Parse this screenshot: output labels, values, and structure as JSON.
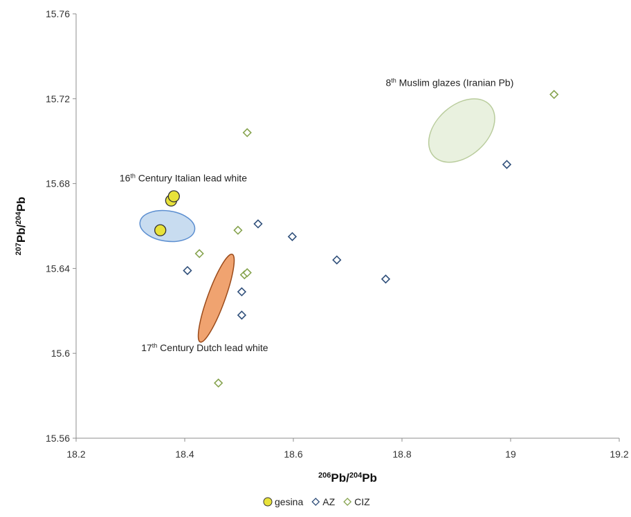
{
  "chart_data": {
    "type": "scatter",
    "title": "",
    "xlabel": {
      "sup": "206",
      "main": "Pb/",
      "sup2": "204",
      "main2": "Pb"
    },
    "ylabel": {
      "sup": "207",
      "main": "Pb/",
      "sup2": "204",
      "main2": "Pb"
    },
    "xlim": [
      18.2,
      19.2
    ],
    "ylim": [
      15.56,
      15.76
    ],
    "xticks": [
      18.2,
      18.4,
      18.6,
      18.8,
      19.0,
      19.2
    ],
    "xtick_labels": [
      "18.2",
      "18.4",
      "18.6",
      "18.8",
      "19",
      "19.2"
    ],
    "yticks": [
      15.56,
      15.6,
      15.64,
      15.68,
      15.72,
      15.76
    ],
    "ytick_labels": [
      "15.56",
      "15.6",
      "15.64",
      "15.68",
      "15.72",
      "15.76"
    ],
    "grid": false,
    "legend_position": "bottom-center",
    "series": [
      {
        "name": "gesina",
        "marker": "circle",
        "fill": "#e8e23a",
        "stroke": "#333333",
        "points": [
          [
            18.355,
            15.658
          ],
          [
            18.375,
            15.672
          ],
          [
            18.38,
            15.674
          ]
        ]
      },
      {
        "name": "AZ",
        "marker": "diamond",
        "fill": "#ffffff",
        "stroke": "#2f4f7a",
        "points": [
          [
            18.405,
            15.639
          ],
          [
            18.505,
            15.629
          ],
          [
            18.505,
            15.618
          ],
          [
            18.535,
            15.661
          ],
          [
            18.598,
            15.655
          ],
          [
            18.68,
            15.644
          ],
          [
            18.77,
            15.635
          ],
          [
            18.993,
            15.689
          ]
        ]
      },
      {
        "name": "CIZ",
        "marker": "diamond",
        "fill": "#ffffff",
        "stroke": "#86a34e",
        "points": [
          [
            18.427,
            15.647
          ],
          [
            18.462,
            15.586
          ],
          [
            18.498,
            15.658
          ],
          [
            18.51,
            15.637
          ],
          [
            18.515,
            15.638
          ],
          [
            18.515,
            15.704
          ],
          [
            19.08,
            15.722
          ]
        ]
      }
    ],
    "regions": [
      {
        "name": "italian",
        "cx": 18.368,
        "cy": 15.66,
        "rx": 0.028,
        "ry": 0.013,
        "angle": -82,
        "fill": "#c8dcf0",
        "stroke": "#5b8ed0"
      },
      {
        "name": "dutch",
        "cx": 18.458,
        "cy": 15.626,
        "rx": 0.016,
        "ry": 0.022,
        "angle": 20,
        "fill": "#f0a370",
        "stroke": "#9a4a1a"
      },
      {
        "name": "muslim",
        "cx": 18.91,
        "cy": 15.705,
        "rx": 0.07,
        "ry": 0.012,
        "angle": -42,
        "fill": "#e9f1df",
        "stroke": "#b9cc9c"
      }
    ],
    "annotations": [
      {
        "name": "italian",
        "pre": "16",
        "sup": "th",
        "post": " Century Italian lead white",
        "x": 18.28,
        "y": 15.681
      },
      {
        "name": "dutch",
        "pre": "17",
        "sup": "th",
        "post": " Century Dutch lead white",
        "x": 18.32,
        "y": 15.601
      },
      {
        "name": "muslim",
        "pre": "8",
        "sup": "th",
        "post": " Muslim glazes (Iranian Pb)",
        "x": 18.77,
        "y": 15.726
      }
    ]
  }
}
